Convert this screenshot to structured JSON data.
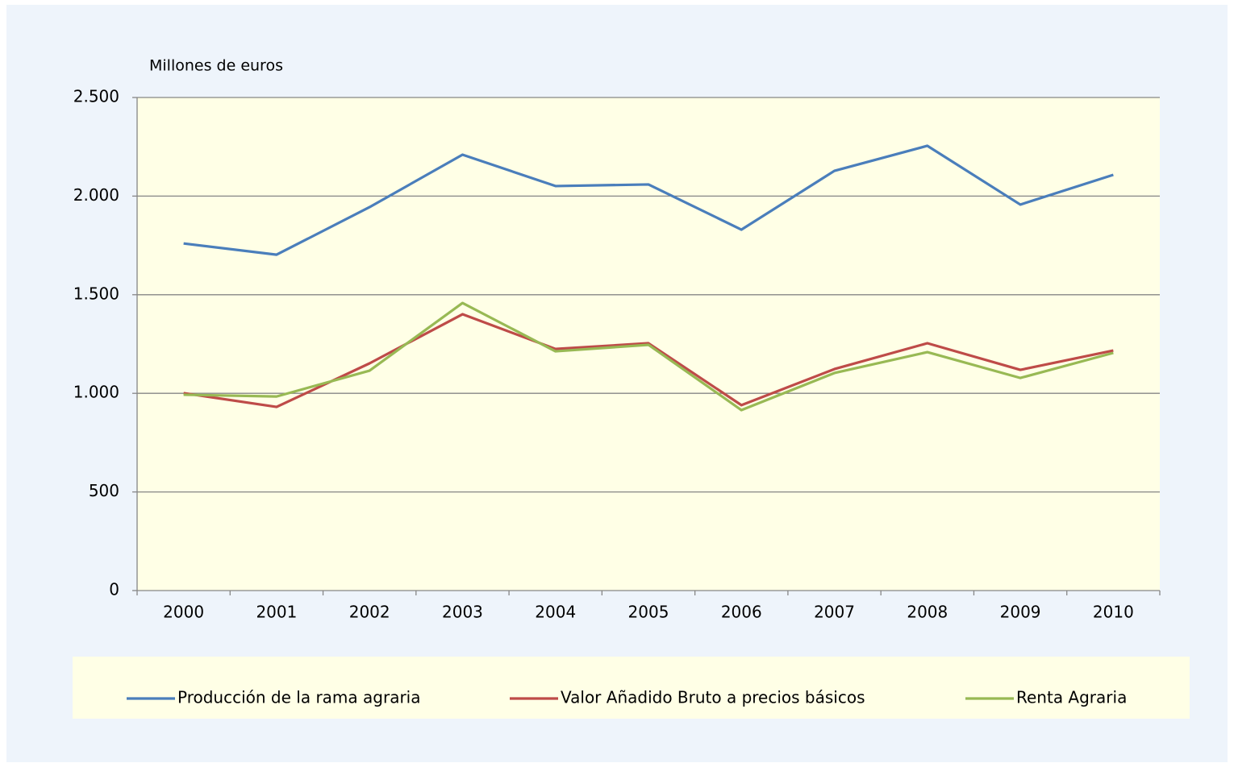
{
  "chart_data": {
    "type": "line",
    "ylabel": "Millones de euros",
    "categories": [
      "2000",
      "2001",
      "2002",
      "2003",
      "2004",
      "2005",
      "2006",
      "2007",
      "2008",
      "2009",
      "2010"
    ],
    "series": [
      {
        "name": "Producción de la rama agraria",
        "color": "#4a7ebb",
        "values": [
          1760,
          1703,
          1944,
          2210,
          2051,
          2059,
          1830,
          2128,
          2255,
          1957,
          2108
        ]
      },
      {
        "name": "Valor Añadido Bruto a precios básicos",
        "color": "#be4b48",
        "values": [
          1001,
          931,
          1152,
          1401,
          1225,
          1254,
          940,
          1123,
          1254,
          1119,
          1217
        ]
      },
      {
        "name": "Renta Agraria",
        "color": "#98b954",
        "values": [
          993,
          984,
          1115,
          1458,
          1213,
          1246,
          915,
          1103,
          1209,
          1078,
          1205
        ]
      }
    ],
    "ylim": [
      0,
      2500
    ],
    "yticks": [
      0,
      500,
      {
        "value": 1000,
        "label": "1.000"
      },
      {
        "value": 1500,
        "label": "1.500"
      },
      {
        "value": 2000,
        "label": "2.000"
      },
      {
        "value": 2500,
        "label": "2.500"
      }
    ],
    "grid": true,
    "legend": "bottom"
  }
}
